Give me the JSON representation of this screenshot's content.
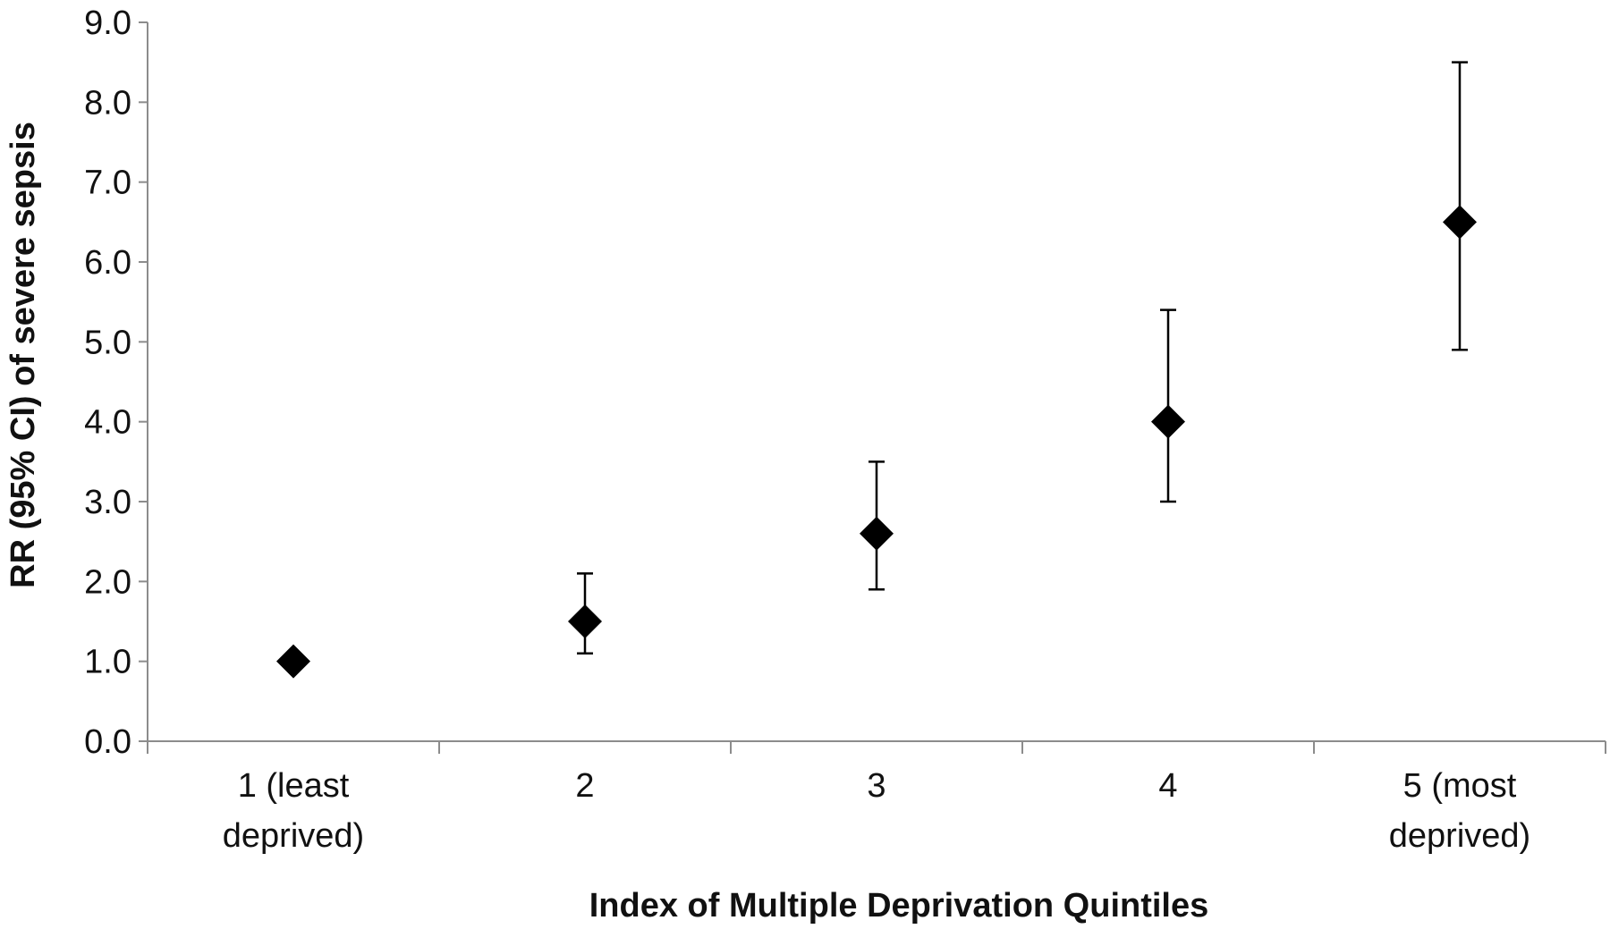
{
  "chart_data": {
    "type": "scatter",
    "title": "",
    "xlabel": "Index of Multiple Deprivation Quintiles",
    "ylabel": "RR (95% CI) of severe sepsis",
    "ylim": [
      0,
      9
    ],
    "y_tick_step": 1,
    "y_tick_labels": [
      "0.0",
      "1.0",
      "2.0",
      "3.0",
      "4.0",
      "5.0",
      "6.0",
      "7.0",
      "8.0",
      "9.0"
    ],
    "grid": false,
    "legend": "none",
    "marker": "diamond",
    "marker_color": "#000000",
    "categories": [
      [
        "1 (least",
        "deprived)"
      ],
      [
        "2"
      ],
      [
        "3"
      ],
      [
        "4"
      ],
      [
        "5 (most",
        "deprived)"
      ]
    ],
    "values": [
      1.0,
      1.5,
      2.6,
      4.0,
      6.5
    ],
    "ci_lower": [
      null,
      1.1,
      1.9,
      3.0,
      4.9
    ],
    "ci_upper": [
      null,
      2.1,
      3.5,
      5.4,
      8.5
    ]
  }
}
